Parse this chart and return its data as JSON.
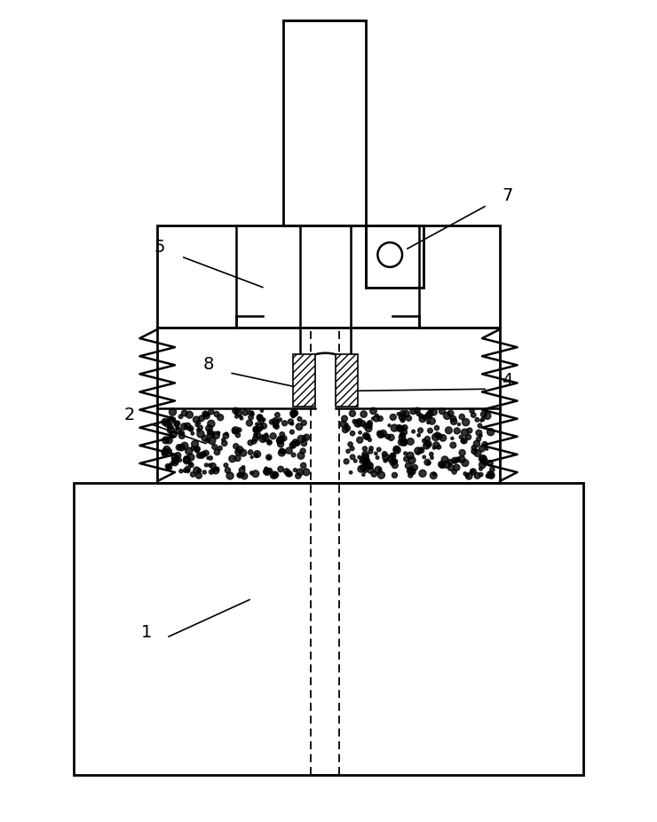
{
  "bg_color": "#ffffff",
  "fig_width": 7.4,
  "fig_height": 9.26,
  "label_fontsize": 14
}
